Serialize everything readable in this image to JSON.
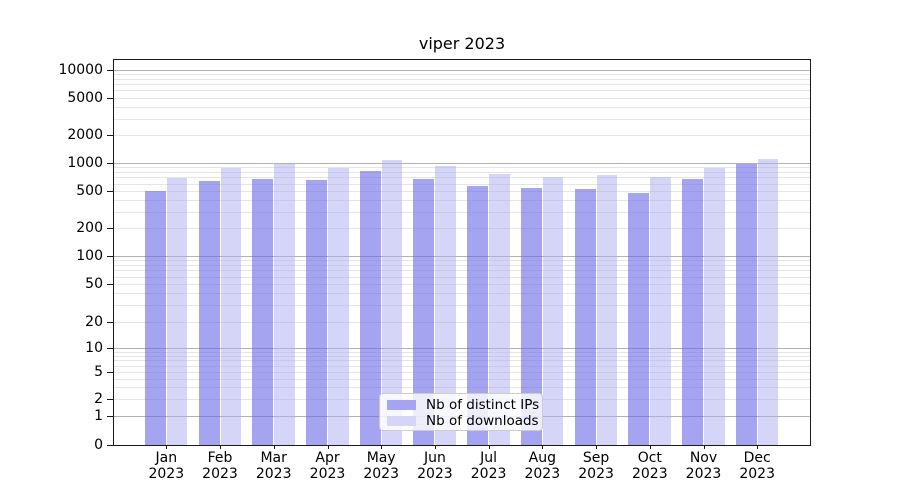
{
  "chart_data": {
    "type": "bar",
    "title": "viper 2023",
    "xlabel": "",
    "ylabel": "",
    "yscale": "symlog",
    "ylim": [
      0,
      13000
    ],
    "grid": "both",
    "legend_position": "lower center",
    "categories": [
      "Jan",
      "Feb",
      "Mar",
      "Apr",
      "May",
      "Jun",
      "Jul",
      "Aug",
      "Sep",
      "Oct",
      "Nov",
      "Dec"
    ],
    "category_year": "2023",
    "yticks": [
      0,
      1,
      2,
      5,
      10,
      20,
      50,
      100,
      200,
      500,
      1000,
      2000,
      5000,
      10000
    ],
    "series": [
      {
        "name": "Nb of distinct IPs",
        "values": [
          500,
          635,
          675,
          655,
          815,
          665,
          570,
          540,
          520,
          480,
          670,
          960
        ],
        "color": "rgba(104,104,232,0.6)",
        "swatch": "#a4a4f1"
      },
      {
        "name": "Nb of downloads",
        "values": [
          690,
          885,
          965,
          870,
          1080,
          915,
          755,
          710,
          740,
          700,
          885,
          1100
        ],
        "color": "rgba(172,172,240,0.5)",
        "swatch": "#d5d5f8"
      }
    ],
    "colors": {
      "grid_major_power10": "#b2b2b2",
      "grid_minor": "#e5e5e5",
      "axis_spine": "#1a1a1a"
    }
  }
}
